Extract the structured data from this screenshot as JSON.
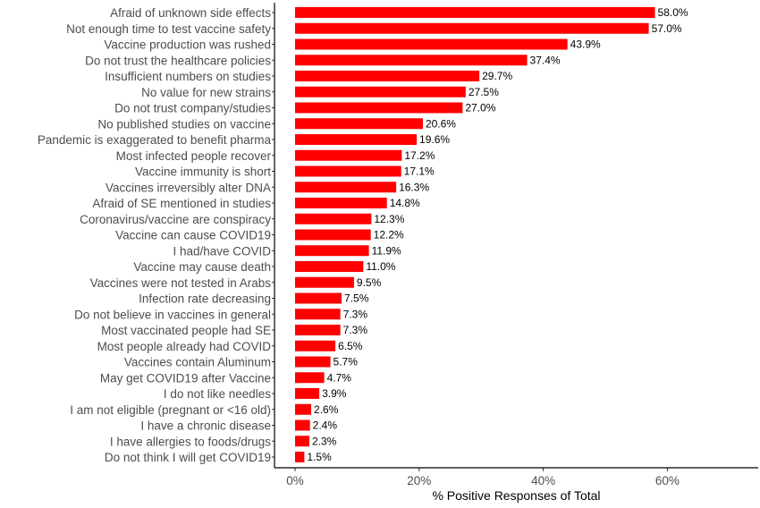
{
  "chart_data": {
    "type": "bar",
    "orientation": "horizontal",
    "title": "",
    "xlabel": "% Positive Responses of Total",
    "ylabel": "",
    "xlim": [
      0,
      70
    ],
    "x_ticks": [
      {
        "value": 0,
        "label": "0%"
      },
      {
        "value": 20,
        "label": "20%"
      },
      {
        "value": 40,
        "label": "40%"
      },
      {
        "value": 60,
        "label": "60%"
      }
    ],
    "grid": false,
    "bar_color": "#ff0000",
    "categories": [
      "Afraid of unknown side effects",
      "Not enough time to test vaccine safety",
      "Vaccine production was rushed",
      "Do not trust the healthcare policies",
      "Insufficient numbers on studies",
      "No value for new strains",
      "Do not trust company/studies",
      "No published studies on vaccine",
      "Pandemic is exaggerated to benefit pharma",
      "Most infected people recover",
      "Vaccine immunity is short",
      "Vaccines irreversibly alter DNA",
      "Afraid of SE mentioned in studies",
      "Coronavirus/vaccine are conspiracy",
      "Vaccine can cause COVID19",
      "I had/have COVID",
      "Vaccine may cause death",
      "Vaccines were not tested in Arabs",
      "Infection rate decreasing",
      "Do not believe in vaccines in general",
      "Most vaccinated people had SE",
      "Most people already had COVID",
      "Vaccines contain Aluminum",
      "May get COVID19 after Vaccine",
      "I do not like needles",
      "I am not eligible (pregnant or <16 old)",
      "I have a chronic disease",
      "I have allergies to foods/drugs",
      "Do not think I will get COVID19"
    ],
    "values": [
      58.0,
      57.0,
      43.9,
      37.4,
      29.7,
      27.5,
      27.0,
      20.6,
      19.6,
      17.2,
      17.1,
      16.3,
      14.8,
      12.3,
      12.2,
      11.9,
      11.0,
      9.5,
      7.5,
      7.3,
      7.3,
      6.5,
      5.7,
      4.7,
      3.9,
      2.6,
      2.4,
      2.3,
      1.5
    ],
    "value_labels": [
      "58.0%",
      "57.0%",
      "43.9%",
      "37.4%",
      "29.7%",
      "27.5%",
      "27.0%",
      "20.6%",
      "19.6%",
      "17.2%",
      "17.1%",
      "16.3%",
      "14.8%",
      "12.3%",
      "12.2%",
      "11.9%",
      "11.0%",
      "9.5%",
      "7.5%",
      "7.3%",
      "7.3%",
      "6.5%",
      "5.7%",
      "4.7%",
      "3.9%",
      "2.6%",
      "2.4%",
      "2.3%",
      "1.5%"
    ]
  }
}
